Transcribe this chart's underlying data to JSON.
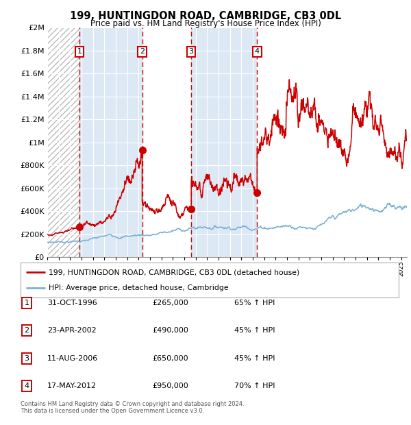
{
  "title": "199, HUNTINGDON ROAD, CAMBRIDGE, CB3 0DL",
  "subtitle": "Price paid vs. HM Land Registry's House Price Index (HPI)",
  "footer": "Contains HM Land Registry data © Crown copyright and database right 2024.\nThis data is licensed under the Open Government Licence v3.0.",
  "legend_line1": "199, HUNTINGDON ROAD, CAMBRIDGE, CB3 0DL (detached house)",
  "legend_line2": "HPI: Average price, detached house, Cambridge",
  "purchases": [
    {
      "num": 1,
      "date": "31-OCT-1996",
      "price": 265000,
      "pct": "65%",
      "year": 1996.83
    },
    {
      "num": 2,
      "date": "23-APR-2002",
      "price": 490000,
      "pct": "45%",
      "year": 2002.31
    },
    {
      "num": 3,
      "date": "11-AUG-2006",
      "price": 650000,
      "pct": "45%",
      "year": 2006.61
    },
    {
      "num": 4,
      "date": "17-MAY-2012",
      "price": 950000,
      "pct": "70%",
      "year": 2012.38
    }
  ],
  "red_color": "#cc0000",
  "blue_color": "#7ab0d4",
  "bg_color": "#dce9f5",
  "grid_color": "#ffffff",
  "ymax": 2000000,
  "xmin": 1994,
  "xmax": 2025.5,
  "yticks": [
    0,
    200000,
    400000,
    600000,
    800000,
    1000000,
    1200000,
    1400000,
    1600000,
    1800000,
    2000000
  ],
  "ytick_labels": [
    "£0",
    "£200K",
    "£400K",
    "£600K",
    "£800K",
    "£1M",
    "£1.2M",
    "£1.4M",
    "£1.6M",
    "£1.8M",
    "£2M"
  ]
}
